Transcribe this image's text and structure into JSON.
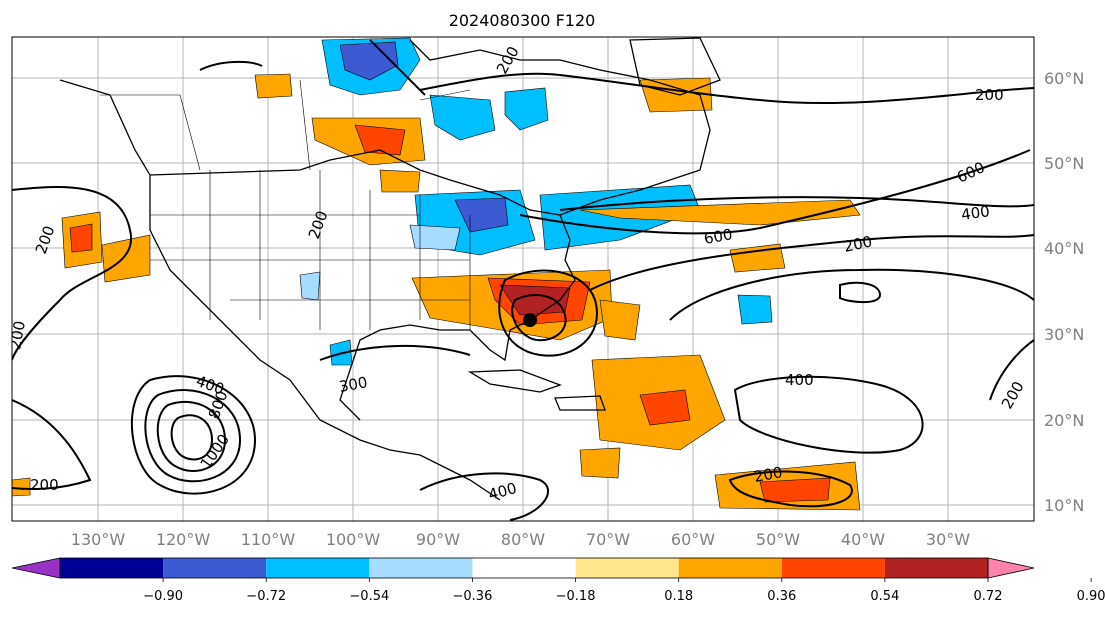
{
  "title": "2024080300 F120",
  "lat_labels": [
    "60°N",
    "50°N",
    "40°N",
    "30°N",
    "20°N",
    "10°N"
  ],
  "lon_labels": [
    "130°W",
    "120°W",
    "110°W",
    "100°W",
    "90°W",
    "80°W",
    "70°W",
    "60°W",
    "50°W",
    "40°W",
    "30°W"
  ],
  "contour_labels": [
    "200",
    "200",
    "600",
    "400",
    "200",
    "600",
    "200",
    "200",
    "400",
    "800",
    "1000",
    "300",
    "400",
    "200",
    "400",
    "200",
    "200",
    "200"
  ],
  "colorbar": {
    "ticks": [
      "−0.90",
      "−0.72",
      "−0.54",
      "−0.36",
      "−0.18",
      "0.18",
      "0.36",
      "0.54",
      "0.72",
      "0.90"
    ],
    "colors": [
      "#9b32c8",
      "#000096",
      "#3c5ad2",
      "#00bfff",
      "#a6dcff",
      "#ffffff",
      "#ffe68c",
      "#ffa500",
      "#ff4500",
      "#b22222",
      "#ff82aa"
    ]
  },
  "shading_colors": {
    "light_orange": "#ffa500",
    "dark_orange": "#ff4500",
    "dark_red": "#b22222",
    "cyan": "#00bfff",
    "blue": "#3c5ad2",
    "light_yellow": "#ffe68c"
  }
}
